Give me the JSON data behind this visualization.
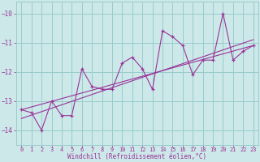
{
  "xlabel": "Windchill (Refroidissement éolien,°C)",
  "bg_color": "#cce8e8",
  "grid_color": "#99cccc",
  "line_color": "#993399",
  "xlim": [
    -0.5,
    23.5
  ],
  "ylim": [
    -14.5,
    -9.6
  ],
  "yticks": [
    -14,
    -13,
    -12,
    -11,
    -10
  ],
  "xticks": [
    0,
    1,
    2,
    3,
    4,
    5,
    6,
    7,
    8,
    9,
    10,
    11,
    12,
    13,
    14,
    15,
    16,
    17,
    18,
    19,
    20,
    21,
    22,
    23
  ],
  "data_x": [
    0,
    1,
    2,
    3,
    4,
    5,
    6,
    7,
    8,
    9,
    10,
    11,
    12,
    13,
    14,
    15,
    16,
    17,
    18,
    19,
    20,
    21,
    22,
    23
  ],
  "data_y": [
    -13.3,
    -13.4,
    -14.0,
    -13.0,
    -13.5,
    -13.5,
    -11.9,
    -12.5,
    -12.6,
    -12.6,
    -11.7,
    -11.5,
    -11.9,
    -12.6,
    -10.6,
    -10.8,
    -11.1,
    -12.1,
    -11.6,
    -11.6,
    -10.0,
    -11.6,
    -11.3,
    -11.1
  ],
  "trend1_x": [
    0,
    23
  ],
  "trend1_y": [
    -13.6,
    -10.9
  ],
  "trend2_x": [
    0,
    23
  ],
  "trend2_y": [
    -13.3,
    -11.1
  ]
}
